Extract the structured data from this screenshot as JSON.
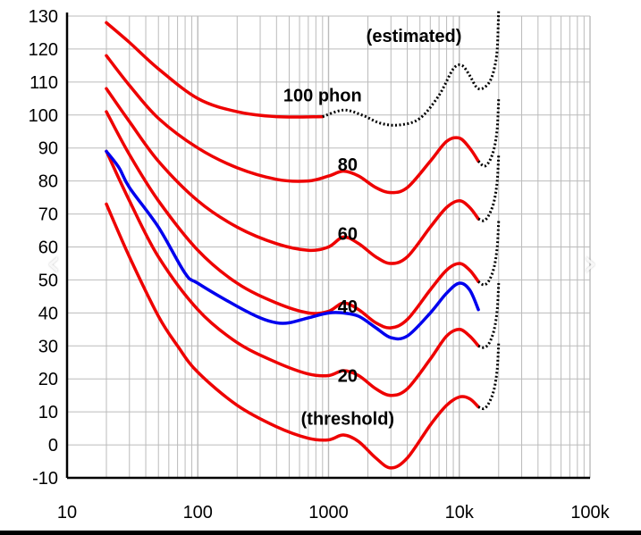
{
  "nav": {
    "prev_icon": "‹",
    "next_icon": "›"
  },
  "colors": {
    "equal_loudness": "#ee0000",
    "comparison": "#0000ee",
    "estimated": "#000000",
    "grid": "#bbbbbb"
  },
  "chart_data": {
    "type": "line",
    "x_scale": "log",
    "xlim": [
      10,
      100000
    ],
    "ylim": [
      -10,
      130
    ],
    "grid": true,
    "x_ticks": [
      {
        "value": 10,
        "label": "10"
      },
      {
        "value": 100,
        "label": "100"
      },
      {
        "value": 1000,
        "label": "1000"
      },
      {
        "value": 10000,
        "label": "10k"
      },
      {
        "value": 100000,
        "label": "100k"
      }
    ],
    "y_ticks": [
      -10,
      0,
      10,
      20,
      30,
      40,
      50,
      60,
      70,
      80,
      90,
      100,
      110,
      120,
      130
    ],
    "y_tick_labels": [
      "-10",
      "0",
      "10",
      "20",
      "30",
      "40",
      "50",
      "60",
      "70",
      "80",
      "90",
      "100",
      "110",
      "120",
      "130"
    ],
    "annotations": [
      {
        "text": "(estimated)",
        "x": 4500,
        "y": 124
      },
      {
        "text": "100 phon",
        "x": 900,
        "y": 106
      },
      {
        "text": "80",
        "x": 1400,
        "y": 85
      },
      {
        "text": "60",
        "x": 1400,
        "y": 64
      },
      {
        "text": "40",
        "x": 1400,
        "y": 42
      },
      {
        "text": "20",
        "x": 1400,
        "y": 21
      },
      {
        "text": "(threshold)",
        "x": 1400,
        "y": 8
      }
    ],
    "series": [
      {
        "style": "red",
        "points": [
          [
            20,
            128
          ],
          [
            30,
            122
          ],
          [
            50,
            114
          ],
          [
            100,
            105
          ],
          [
            200,
            101
          ],
          [
            400,
            99.5
          ],
          [
            900,
            99.5
          ]
        ]
      },
      {
        "style": "dashed",
        "points": [
          [
            900,
            99.5
          ],
          [
            1300,
            101.5
          ],
          [
            1800,
            100
          ],
          [
            2500,
            97.5
          ],
          [
            3500,
            97
          ],
          [
            5000,
            99
          ],
          [
            7000,
            106
          ],
          [
            9000,
            114
          ],
          [
            10500,
            115
          ],
          [
            12000,
            112
          ],
          [
            13500,
            108.5
          ],
          [
            15000,
            108
          ],
          [
            17000,
            110
          ],
          [
            18500,
            114
          ],
          [
            19500,
            120
          ],
          [
            20000,
            132
          ]
        ]
      },
      {
        "style": "red",
        "points": [
          [
            20,
            118
          ],
          [
            30,
            109
          ],
          [
            50,
            99
          ],
          [
            100,
            90
          ],
          [
            200,
            84
          ],
          [
            400,
            80.5
          ],
          [
            700,
            80
          ],
          [
            1000,
            81.5
          ],
          [
            1300,
            83
          ],
          [
            1700,
            81.5
          ],
          [
            2300,
            78
          ],
          [
            3000,
            76.5
          ],
          [
            4000,
            78
          ],
          [
            6000,
            86
          ],
          [
            8000,
            92
          ],
          [
            10000,
            93
          ],
          [
            12000,
            90
          ],
          [
            14000,
            86
          ]
        ]
      },
      {
        "style": "dashed",
        "points": [
          [
            14000,
            86
          ],
          [
            15500,
            84.5
          ],
          [
            17000,
            86
          ],
          [
            18500,
            90
          ],
          [
            19500,
            96
          ],
          [
            20000,
            105
          ]
        ]
      },
      {
        "style": "red",
        "points": [
          [
            20,
            108
          ],
          [
            30,
            98
          ],
          [
            50,
            86
          ],
          [
            100,
            74
          ],
          [
            200,
            66
          ],
          [
            400,
            61
          ],
          [
            700,
            59
          ],
          [
            1000,
            60
          ],
          [
            1300,
            63
          ],
          [
            1700,
            61
          ],
          [
            2300,
            57
          ],
          [
            3000,
            55
          ],
          [
            4000,
            57
          ],
          [
            6000,
            66
          ],
          [
            8000,
            72
          ],
          [
            10000,
            74
          ],
          [
            12000,
            72
          ],
          [
            14000,
            68.5
          ]
        ]
      },
      {
        "style": "dashed",
        "points": [
          [
            14000,
            68.5
          ],
          [
            15500,
            68
          ],
          [
            17000,
            70
          ],
          [
            18500,
            74
          ],
          [
            19500,
            80
          ],
          [
            20000,
            88
          ]
        ]
      },
      {
        "style": "red",
        "points": [
          [
            20,
            101
          ],
          [
            30,
            88
          ],
          [
            50,
            74
          ],
          [
            100,
            59
          ],
          [
            200,
            49
          ],
          [
            400,
            43
          ],
          [
            700,
            40
          ],
          [
            1000,
            40.5
          ],
          [
            1300,
            43
          ],
          [
            1700,
            41
          ],
          [
            2300,
            37
          ],
          [
            3000,
            35.5
          ],
          [
            4000,
            38
          ],
          [
            6000,
            47
          ],
          [
            8000,
            53
          ],
          [
            10000,
            55
          ],
          [
            12000,
            53
          ],
          [
            14000,
            49.5
          ]
        ]
      },
      {
        "style": "dashed",
        "points": [
          [
            14000,
            49.5
          ],
          [
            15500,
            48.5
          ],
          [
            17000,
            50
          ],
          [
            18500,
            54
          ],
          [
            19500,
            60
          ],
          [
            20000,
            68
          ]
        ]
      },
      {
        "style": "red",
        "points": [
          [
            20,
            89
          ],
          [
            30,
            74
          ],
          [
            50,
            57
          ],
          [
            100,
            41
          ],
          [
            200,
            31
          ],
          [
            400,
            25
          ],
          [
            700,
            21.5
          ],
          [
            1000,
            21
          ],
          [
            1300,
            22.5
          ],
          [
            1700,
            21
          ],
          [
            2300,
            17
          ],
          [
            3000,
            15
          ],
          [
            4000,
            17
          ],
          [
            6000,
            26
          ],
          [
            8000,
            33
          ],
          [
            10000,
            35
          ],
          [
            12000,
            33
          ],
          [
            14000,
            30
          ]
        ]
      },
      {
        "style": "dashed",
        "points": [
          [
            14000,
            30
          ],
          [
            15500,
            29.5
          ],
          [
            17000,
            31
          ],
          [
            18500,
            35
          ],
          [
            19500,
            41
          ],
          [
            20000,
            49
          ]
        ]
      },
      {
        "style": "red",
        "points": [
          [
            20,
            73
          ],
          [
            30,
            57
          ],
          [
            50,
            39
          ],
          [
            70,
            30
          ],
          [
            100,
            22
          ],
          [
            200,
            12
          ],
          [
            400,
            5.5
          ],
          [
            700,
            2
          ],
          [
            1000,
            1.5
          ],
          [
            1300,
            3
          ],
          [
            1700,
            1
          ],
          [
            2300,
            -4
          ],
          [
            3000,
            -7
          ],
          [
            4000,
            -4
          ],
          [
            6000,
            6
          ],
          [
            8000,
            12
          ],
          [
            10000,
            14.5
          ],
          [
            12000,
            14
          ],
          [
            14000,
            11.5
          ]
        ]
      },
      {
        "style": "dashed",
        "points": [
          [
            14000,
            11.5
          ],
          [
            15500,
            11
          ],
          [
            17000,
            13
          ],
          [
            18500,
            17
          ],
          [
            19500,
            23
          ],
          [
            20000,
            31
          ]
        ]
      },
      {
        "style": "blue",
        "points": [
          [
            20,
            89
          ],
          [
            25,
            84
          ],
          [
            30,
            78
          ],
          [
            50,
            66
          ],
          [
            80,
            52
          ],
          [
            100,
            49
          ],
          [
            200,
            42
          ],
          [
            300,
            38.5
          ],
          [
            400,
            37
          ],
          [
            500,
            37
          ],
          [
            700,
            38.5
          ],
          [
            1000,
            40
          ],
          [
            1300,
            40
          ],
          [
            1700,
            39
          ],
          [
            2300,
            35.5
          ],
          [
            3000,
            32.5
          ],
          [
            4000,
            33
          ],
          [
            6000,
            40
          ],
          [
            8000,
            46
          ],
          [
            10000,
            49
          ],
          [
            12000,
            47
          ],
          [
            14000,
            41
          ]
        ]
      }
    ]
  }
}
